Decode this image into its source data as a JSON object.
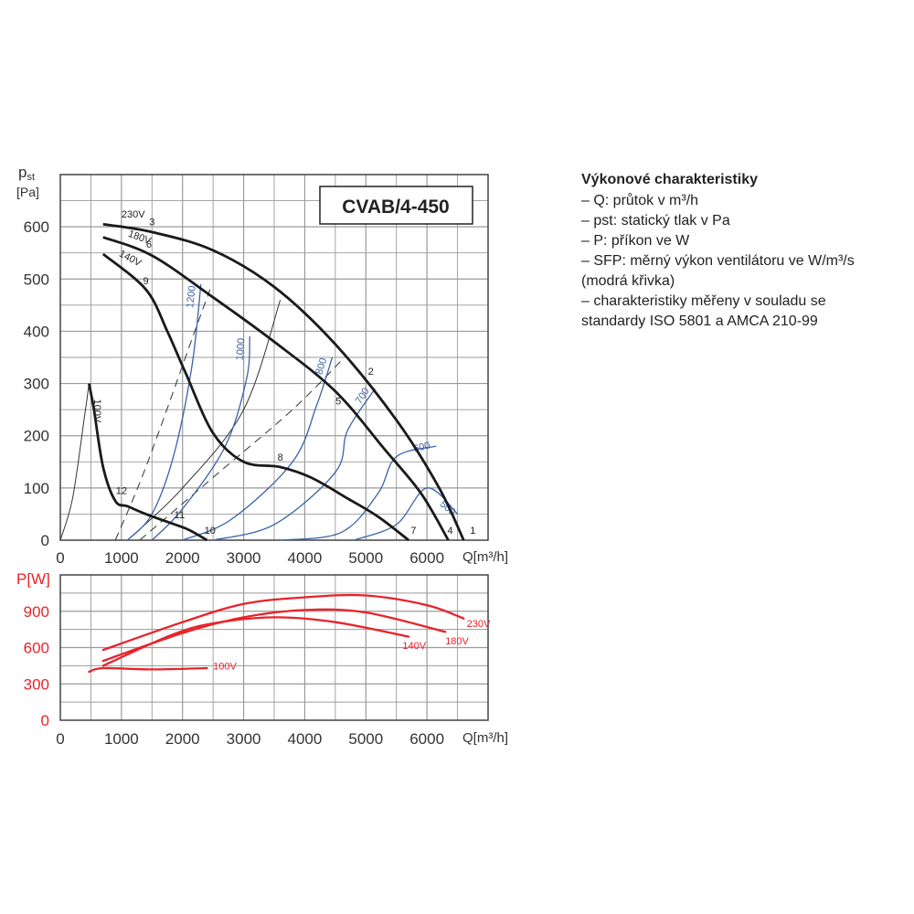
{
  "chart_data": [
    {
      "type": "line",
      "title": "CVAB/4-450",
      "ylabel_main": "p",
      "ylabel_sub": "st",
      "ylabel_unit": "[Pa]",
      "xlabel": "Q[m³/h]",
      "xlim": [
        0,
        7000
      ],
      "ylim": [
        0,
        700
      ],
      "x_ticks": [
        "0",
        "1000",
        "2000",
        "3000",
        "4000",
        "5000",
        "6000"
      ],
      "y_ticks": [
        "0",
        "100",
        "200",
        "300",
        "400",
        "500",
        "600"
      ],
      "x_tick_values": [
        0,
        1000,
        2000,
        3000,
        4000,
        5000,
        6000
      ],
      "y_tick_values": [
        0,
        100,
        200,
        300,
        400,
        500,
        600
      ],
      "grid": true,
      "fan_curves": [
        {
          "name": "230V",
          "points": [
            [
              700,
              605
            ],
            [
              1500,
              590
            ],
            [
              2500,
              555
            ],
            [
              3500,
              485
            ],
            [
              4500,
              375
            ],
            [
              5500,
              230
            ],
            [
              6200,
              100
            ],
            [
              6600,
              0
            ]
          ]
        },
        {
          "name": "180V",
          "points": [
            [
              700,
              580
            ],
            [
              1500,
              545
            ],
            [
              2500,
              465
            ],
            [
              3500,
              380
            ],
            [
              4500,
              285
            ],
            [
              5300,
              175
            ],
            [
              5900,
              90
            ],
            [
              6350,
              0
            ]
          ]
        },
        {
          "name": "140V",
          "points": [
            [
              700,
              548
            ],
            [
              1400,
              480
            ],
            [
              1750,
              400
            ],
            [
              2050,
              320
            ],
            [
              2500,
              205
            ],
            [
              3000,
              150
            ],
            [
              3600,
              140
            ],
            [
              4100,
              120
            ],
            [
              4700,
              80
            ],
            [
              5200,
              45
            ],
            [
              5700,
              0
            ]
          ]
        },
        {
          "name": "100V",
          "points": [
            [
              470,
              300
            ],
            [
              550,
              250
            ],
            [
              700,
              140
            ],
            [
              900,
              75
            ],
            [
              1100,
              65
            ],
            [
              1400,
              50
            ],
            [
              1800,
              33
            ],
            [
              2100,
              20
            ],
            [
              2400,
              0
            ]
          ]
        }
      ],
      "system_curves": [
        {
          "style": "solid",
          "points": [
            [
              0,
              0
            ],
            [
              200,
              80
            ],
            [
              400,
              240
            ],
            [
              470,
              300
            ]
          ]
        },
        {
          "style": "solid",
          "points": [
            [
              1100,
              0
            ],
            [
              2000,
              100
            ],
            [
              3000,
              250
            ],
            [
              3600,
              460
            ]
          ]
        },
        {
          "style": "dashed",
          "points": [
            [
              900,
              0
            ],
            [
              1400,
              140
            ],
            [
              2200,
              400
            ],
            [
              2450,
              480
            ]
          ]
        },
        {
          "style": "dashed",
          "points": [
            [
              1300,
              0
            ],
            [
              2600,
              130
            ],
            [
              3800,
              250
            ],
            [
              4650,
              350
            ]
          ]
        }
      ],
      "sfp_curves": [
        {
          "label": "1200",
          "points": [
            [
              1100,
              0
            ],
            [
              1500,
              50
            ],
            [
              1850,
              160
            ],
            [
              2150,
              330
            ],
            [
              2300,
              490
            ]
          ]
        },
        {
          "label": "1000",
          "points": [
            [
              1500,
              0
            ],
            [
              2000,
              60
            ],
            [
              2700,
              180
            ],
            [
              3050,
              310
            ],
            [
              3100,
              390
            ]
          ]
        },
        {
          "label": "800",
          "points": [
            [
              2000,
              0
            ],
            [
              2800,
              40
            ],
            [
              3800,
              150
            ],
            [
              4200,
              260
            ],
            [
              4450,
              350
            ]
          ]
        },
        {
          "label": "700",
          "points": [
            [
              2500,
              0
            ],
            [
              3500,
              30
            ],
            [
              4500,
              130
            ],
            [
              4700,
              210
            ],
            [
              5150,
              290
            ]
          ]
        },
        {
          "label": "600",
          "points": [
            [
              3600,
              0
            ],
            [
              4600,
              15
            ],
            [
              5200,
              90
            ],
            [
              5500,
              160
            ],
            [
              6150,
              180
            ]
          ]
        },
        {
          "label": "500",
          "points": [
            [
              4800,
              0
            ],
            [
              5500,
              30
            ],
            [
              6000,
              100
            ],
            [
              6500,
              50
            ]
          ]
        }
      ],
      "point_labels": [
        {
          "text": "1",
          "x": 6750,
          "y": 12
        },
        {
          "text": "2",
          "x": 5080,
          "y": 317
        },
        {
          "text": "3",
          "x": 1500,
          "y": 603
        },
        {
          "text": "4",
          "x": 6380,
          "y": 12
        },
        {
          "text": "5",
          "x": 4550,
          "y": 260
        },
        {
          "text": "6",
          "x": 1450,
          "y": 560
        },
        {
          "text": "7",
          "x": 5780,
          "y": 12
        },
        {
          "text": "8",
          "x": 3600,
          "y": 152
        },
        {
          "text": "9",
          "x": 1400,
          "y": 490
        },
        {
          "text": "10",
          "x": 2450,
          "y": 12
        },
        {
          "text": "11",
          "x": 1950,
          "y": 42
        },
        {
          "text": "12",
          "x": 1000,
          "y": 88
        }
      ],
      "voltage_labels": [
        {
          "text": "230V",
          "x": 1000,
          "y": 618
        },
        {
          "text": "180V",
          "x": 1100,
          "y": 582
        },
        {
          "text": "140V",
          "x": 950,
          "y": 545
        },
        {
          "text": "100V",
          "x": 550,
          "y": 270
        }
      ]
    },
    {
      "type": "line",
      "ylabel": "P[W]",
      "xlabel": "Q[m³/h]",
      "xlim": [
        0,
        7000
      ],
      "ylim": [
        0,
        1200
      ],
      "x_ticks": [
        "0",
        "1000",
        "2000",
        "3000",
        "4000",
        "5000",
        "6000"
      ],
      "y_ticks": [
        "0",
        "300",
        "600",
        "900"
      ],
      "x_tick_values": [
        0,
        1000,
        2000,
        3000,
        4000,
        5000,
        6000
      ],
      "y_tick_values": [
        0,
        300,
        600,
        900
      ],
      "grid": true,
      "series": [
        {
          "name": "230V",
          "points": [
            [
              700,
              580
            ],
            [
              2000,
              810
            ],
            [
              3000,
              960
            ],
            [
              4000,
              1015
            ],
            [
              5000,
              1030
            ],
            [
              6000,
              950
            ],
            [
              6600,
              840
            ]
          ]
        },
        {
          "name": "180V",
          "points": [
            [
              700,
              490
            ],
            [
              2000,
              720
            ],
            [
              3000,
              850
            ],
            [
              4000,
              910
            ],
            [
              5000,
              890
            ],
            [
              6300,
              730
            ]
          ]
        },
        {
          "name": "140V",
          "points": [
            [
              700,
              450
            ],
            [
              1800,
              700
            ],
            [
              2500,
              800
            ],
            [
              3500,
              850
            ],
            [
              4500,
              810
            ],
            [
              5700,
              690
            ]
          ]
        },
        {
          "name": "100V",
          "points": [
            [
              470,
              400
            ],
            [
              700,
              430
            ],
            [
              1500,
              420
            ],
            [
              2400,
              430
            ]
          ]
        }
      ],
      "labels": [
        {
          "text": "230V",
          "x": 6650,
          "y": 770
        },
        {
          "text": "180V",
          "x": 6300,
          "y": 625
        },
        {
          "text": "140V",
          "x": 5600,
          "y": 590
        },
        {
          "text": "100V",
          "x": 2500,
          "y": 420
        }
      ]
    }
  ],
  "legend": {
    "title": "Výkonové charakteristiky",
    "items": [
      "– Q: průtok v m³/h",
      "– pst: statický tlak v Pa",
      "– P: příkon ve W",
      "– SFP: měrný výkon ventilátoru ve W/m³/s",
      "(modrá křivka)",
      "– charakteristiky měřeny v souladu se",
      "standardy ISO 5801 a AMCA 210-99"
    ]
  },
  "colors": {
    "fan_curve": "#1a1a1a",
    "sfp_curve": "#3a63a8",
    "system_curve": "#333333",
    "power_curve": "#e8232a",
    "grid": "#9a9a9a",
    "axis_text": "#333333",
    "power_axis_text": "#e8232a"
  }
}
